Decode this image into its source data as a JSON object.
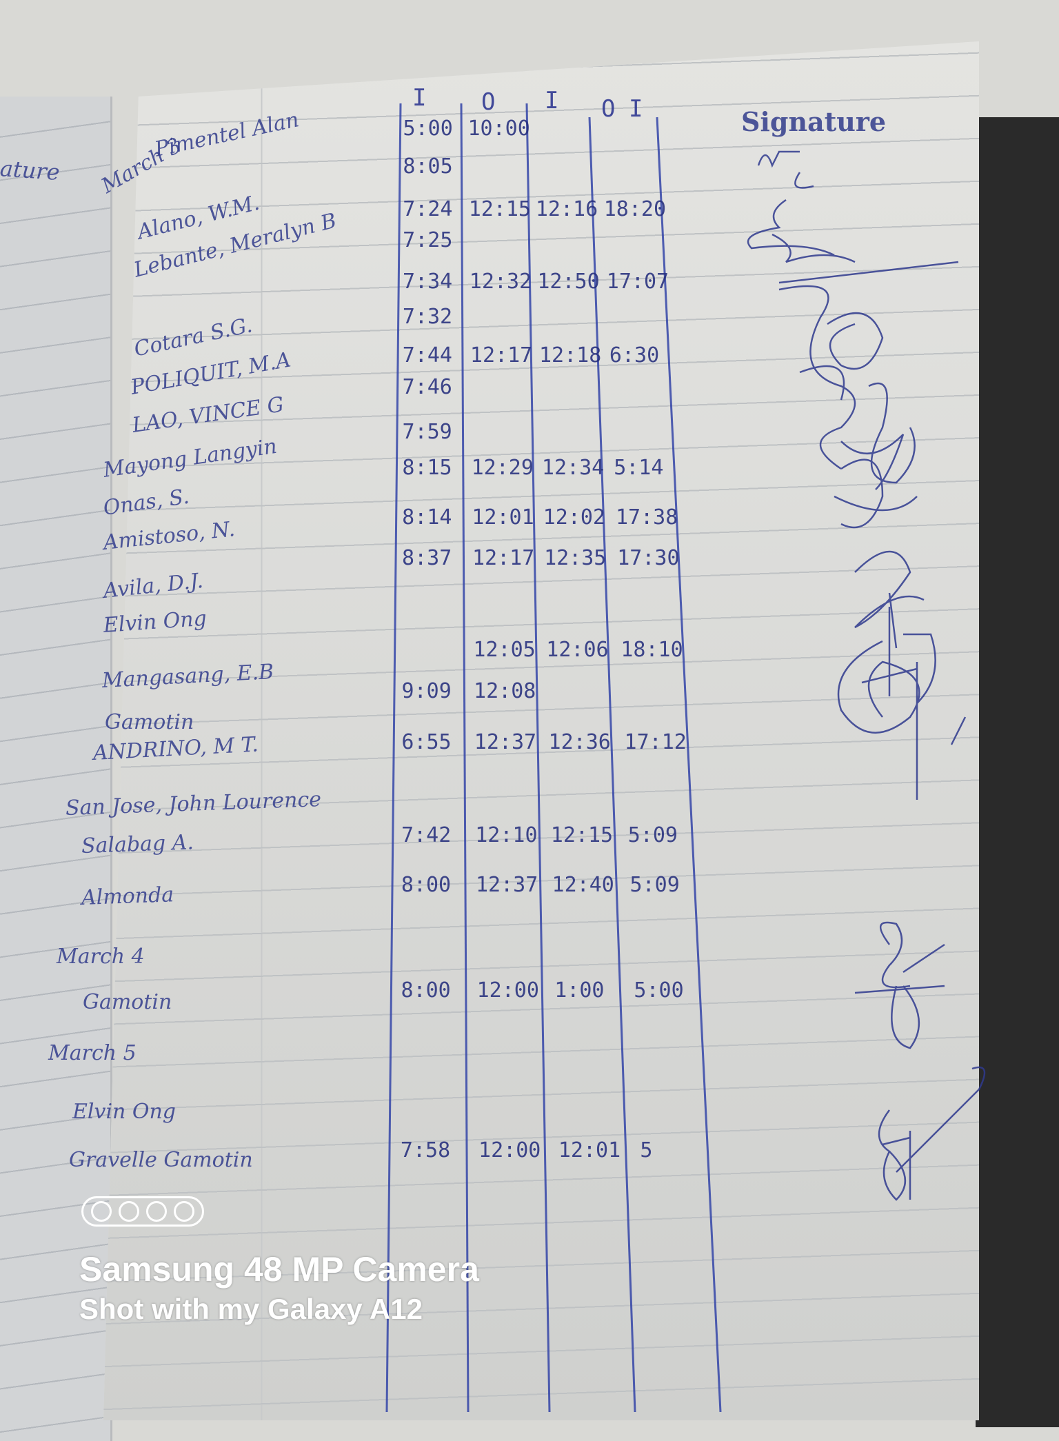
{
  "left_page": {
    "heading_fragment": "ature"
  },
  "headers": {
    "col1": "I",
    "col2": "O",
    "col3": "I",
    "col4": "O",
    "extra": "I",
    "signature": "Signature"
  },
  "entries": [
    {
      "name": "March 3",
      "times": [
        "",
        "",
        "",
        ""
      ]
    },
    {
      "name": "Pimentel Alan",
      "times": [
        "5:00",
        "10:00",
        "",
        ""
      ]
    },
    {
      "name": "",
      "times": [
        "8:05",
        "",
        "",
        ""
      ]
    },
    {
      "name": "Alano, W.M.",
      "times": [
        "7:24",
        "12:15",
        "12:16",
        "18:20"
      ]
    },
    {
      "name": "",
      "times": [
        "7:25",
        "",
        "",
        ""
      ]
    },
    {
      "name": "Lebante, Meralyn B",
      "times": [
        "7:34",
        "12:32",
        "12:50",
        "17:07"
      ]
    },
    {
      "name": "",
      "times": [
        "7:32",
        "",
        "",
        ""
      ]
    },
    {
      "name": "Cotara S.G.",
      "times": [
        "7:44",
        "12:17",
        "12:18",
        "6:30"
      ]
    },
    {
      "name": "POLIQUIT, M.A",
      "times": [
        "7:46",
        "",
        "",
        ""
      ]
    },
    {
      "name": "LAO, VINCE G",
      "times": [
        "7:59",
        "",
        "",
        ""
      ]
    },
    {
      "name": "Mayong Langyin",
      "times": [
        "8:15",
        "12:29",
        "12:34",
        "5:14"
      ]
    },
    {
      "name": "Onas, S.",
      "times": [
        "8:14",
        "12:01",
        "12:02",
        "17:38"
      ]
    },
    {
      "name": "Amistoso, N.",
      "times": [
        "8:37",
        "12:17",
        "12:35",
        "17:30"
      ]
    },
    {
      "name": "Avila, D.J.",
      "times": [
        "",
        "",
        "",
        ""
      ]
    },
    {
      "name": "Elvin Ong",
      "times": [
        "",
        "12:05",
        "12:06",
        "18:10"
      ]
    },
    {
      "name": "Mangasang, E.B",
      "times": [
        "9:09",
        "12:08",
        "",
        ""
      ]
    },
    {
      "name": "Gamotin",
      "times": [
        "",
        "",
        "",
        ""
      ]
    },
    {
      "name": "ANDRINO, M T.",
      "times": [
        "6:55",
        "12:37",
        "12:36",
        "17:12"
      ]
    },
    {
      "name": "San Jose, John Lourence",
      "times": [
        "",
        "",
        "",
        ""
      ]
    },
    {
      "name": "Salabag A.",
      "times": [
        "7:42",
        "12:10",
        "12:15",
        "5:09"
      ]
    },
    {
      "name": "Almonda",
      "times": [
        "8:00",
        "12:37",
        "12:40",
        "5:09"
      ]
    },
    {
      "name": "March 4",
      "times": [
        "",
        "",
        "",
        ""
      ]
    },
    {
      "name": "Gamotin",
      "times": [
        "8:00",
        "12:00",
        "1:00",
        "5:00"
      ]
    },
    {
      "name": "March 5",
      "times": [
        "",
        "",
        "",
        ""
      ]
    },
    {
      "name": "Elvin Ong",
      "times": [
        "",
        "",
        "",
        ""
      ]
    },
    {
      "name": "Gravelle Gamotin",
      "times": [
        "7:58",
        "12:00",
        "12:01",
        "5"
      ]
    }
  ],
  "watermark": {
    "line1": "Samsung 48 MP Camera",
    "line2": "Shot with my Galaxy A12",
    "icon": "quad-camera-icon"
  },
  "colors": {
    "ink": "#2d3a8c",
    "paper": "#dedfdd"
  }
}
